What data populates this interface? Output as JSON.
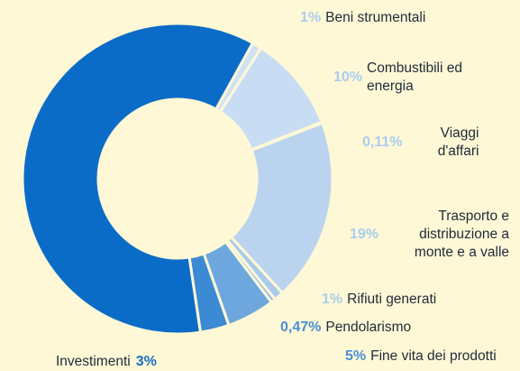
{
  "chart_data": {
    "type": "donut",
    "categories": [
      "Beni strumentali",
      "Combustibili ed energia",
      "Viaggi d'affari",
      "Trasporto e distribuzione a monte e a valle",
      "Rifiuti generati",
      "Pendolarismo",
      "Fine vita dei prodotti",
      "Investimenti",
      null
    ],
    "values": [
      1,
      10,
      0.11,
      19,
      1,
      0.47,
      5,
      3,
      60.42
    ],
    "value_labels": [
      "1%",
      "10%",
      "0,11%",
      "19%",
      "1%",
      "0,47%",
      "5%",
      "3%",
      null
    ],
    "colors": [
      "#cfe2f5",
      "#c8ddf3",
      "#bcd5ef",
      "#bad4ef",
      "#aacbec",
      "#8db9e6",
      "#6ea7de",
      "#3c89d4",
      "#0b6cc8"
    ]
  }
}
